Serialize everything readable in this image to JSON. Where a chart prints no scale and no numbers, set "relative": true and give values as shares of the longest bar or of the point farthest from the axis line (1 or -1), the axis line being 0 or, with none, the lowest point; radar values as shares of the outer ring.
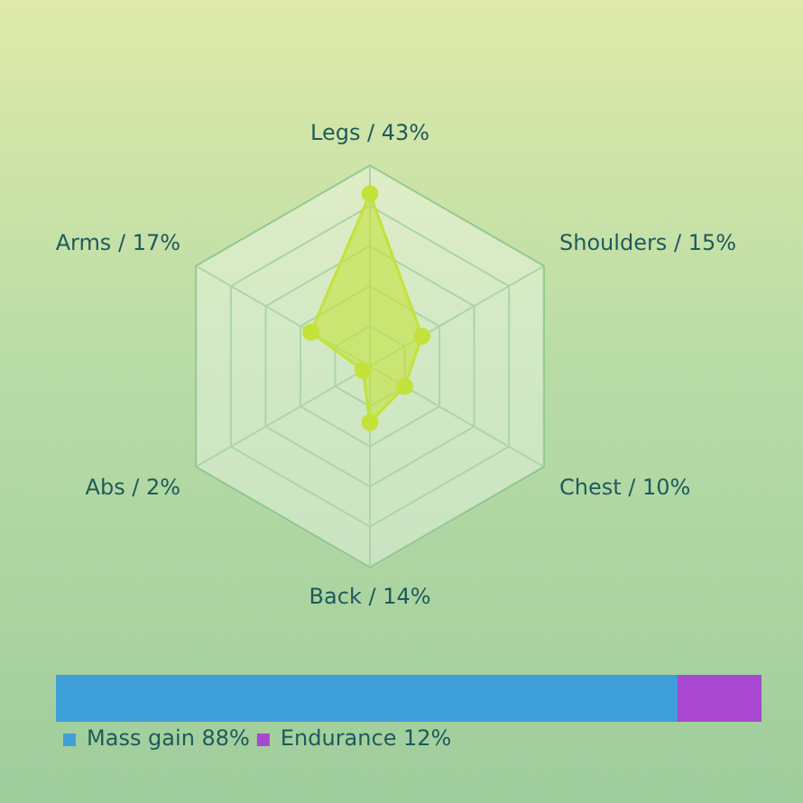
{
  "chart_data": [
    {
      "type": "radar",
      "categories": [
        "Legs / 43%",
        "Shoulders / 15%",
        "Chest / 10%",
        "Back / 14%",
        "Abs / 2%",
        "Arms / 17%"
      ],
      "relative": true,
      "grid": true,
      "marker": "circle",
      "series": [
        {
          "color": "#c3e23a",
          "values": [
            0.86,
            0.3,
            0.2,
            0.28,
            0.04,
            0.34
          ]
        }
      ]
    },
    {
      "type": "bar",
      "orientation": "horizontal",
      "stacked": true,
      "relative": true,
      "categories": [
        null
      ],
      "legend": "bottom",
      "series": [
        {
          "name": "Mass gain 88%",
          "color": "#3f9fd8",
          "values": [
            0.88
          ]
        },
        {
          "name": "Endurance 12%",
          "color": "#a848d0",
          "values": [
            0.12
          ]
        }
      ]
    }
  ]
}
